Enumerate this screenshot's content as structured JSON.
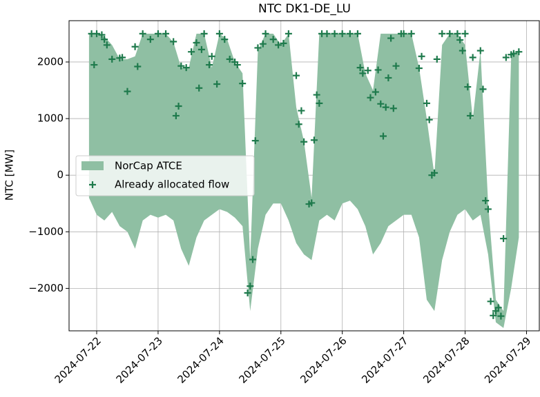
{
  "chart_data": {
    "type": "fill_between",
    "title": "NTC DK1-DE_LU",
    "y_label": "NTC [MW]",
    "xlim": [
      "2024-07-21T13:12",
      "2024-07-29T05:00"
    ],
    "xticks": [
      "2024-07-22",
      "2024-07-23",
      "2024-07-24",
      "2024-07-25",
      "2024-07-26",
      "2024-07-27",
      "2024-07-28",
      "2024-07-29"
    ],
    "ylim": [
      -2750,
      2730
    ],
    "yticks": [
      {
        "value": -2000,
        "label": "−2000"
      },
      {
        "value": -1000,
        "label": "−1000"
      },
      0,
      1000,
      2000
    ],
    "grid": true,
    "legend": "center left",
    "series": [
      {
        "name": "NorCap ATCE",
        "type": "area",
        "color": "#8fbfa3",
        "x": [
          "2024-07-21T21:00",
          "2024-07-22T00:00",
          "2024-07-22T03:00",
          "2024-07-22T06:00",
          "2024-07-22T09:00",
          "2024-07-22T12:00",
          "2024-07-22T15:00",
          "2024-07-22T18:00",
          "2024-07-22T21:00",
          "2024-07-23T00:00",
          "2024-07-23T03:00",
          "2024-07-23T06:00",
          "2024-07-23T09:00",
          "2024-07-23T12:00",
          "2024-07-23T15:00",
          "2024-07-23T18:00",
          "2024-07-23T21:00",
          "2024-07-24T00:00",
          "2024-07-24T03:00",
          "2024-07-24T06:00",
          "2024-07-24T09:00",
          "2024-07-24T12:00",
          "2024-07-24T15:00",
          "2024-07-24T18:00",
          "2024-07-24T21:00",
          "2024-07-25T00:00",
          "2024-07-25T03:00",
          "2024-07-25T06:00",
          "2024-07-25T09:00",
          "2024-07-25T12:00",
          "2024-07-25T15:00",
          "2024-07-25T18:00",
          "2024-07-25T21:00",
          "2024-07-26T00:00",
          "2024-07-26T03:00",
          "2024-07-26T06:00",
          "2024-07-26T09:00",
          "2024-07-26T12:00",
          "2024-07-26T15:00",
          "2024-07-26T18:00",
          "2024-07-26T21:00",
          "2024-07-27T00:00",
          "2024-07-27T03:00",
          "2024-07-27T06:00",
          "2024-07-27T09:00",
          "2024-07-27T12:00",
          "2024-07-27T15:00",
          "2024-07-27T18:00",
          "2024-07-27T21:00",
          "2024-07-28T00:00",
          "2024-07-28T03:00",
          "2024-07-28T06:00",
          "2024-07-28T09:00",
          "2024-07-28T12:00",
          "2024-07-28T15:00",
          "2024-07-28T18:00",
          "2024-07-28T21:00"
        ],
        "values": [
          2500,
          2500,
          2450,
          2300,
          2050,
          2050,
          2100,
          2500,
          2500,
          2500,
          2500,
          2350,
          1900,
          1900,
          2500,
          2500,
          1900,
          2500,
          2400,
          2000,
          1800,
          -1500,
          2200,
          2500,
          2500,
          2300,
          2500,
          1200,
          600,
          -400,
          2500,
          2500,
          2500,
          2500,
          2500,
          2500,
          1800,
          1500,
          2500,
          2500,
          2500,
          2500,
          2500,
          1900,
          1000,
          0,
          2300,
          2500,
          2500,
          2300,
          1000,
          2200,
          -500,
          -2200,
          -2400,
          2100,
          2200
        ],
        "lower": [
          -400,
          -700,
          -800,
          -650,
          -900,
          -1000,
          -1300,
          -800,
          -700,
          -750,
          -700,
          -800,
          -1300,
          -1600,
          -1100,
          -800,
          -700,
          -600,
          -650,
          -750,
          -900,
          -2400,
          -1300,
          -700,
          -500,
          -500,
          -800,
          -1200,
          -1400,
          -1500,
          -800,
          -700,
          -800,
          -500,
          -450,
          -600,
          -900,
          -1400,
          -1200,
          -900,
          -800,
          -700,
          -700,
          -1100,
          -2200,
          -2400,
          -1500,
          -1000,
          -700,
          -600,
          -800,
          -700,
          -1400,
          -2600,
          -2700,
          -2000,
          -1100
        ]
      },
      {
        "name": "Already allocated flow",
        "type": "scatter",
        "color": "#1e7a4c",
        "x": [
          "2024-07-21T22:00",
          "2024-07-21T23:00",
          "2024-07-22T00:00",
          "2024-07-22T02:00",
          "2024-07-22T03:00",
          "2024-07-22T04:00",
          "2024-07-22T06:00",
          "2024-07-22T09:00",
          "2024-07-22T10:00",
          "2024-07-22T12:00",
          "2024-07-22T15:00",
          "2024-07-22T16:00",
          "2024-07-22T18:00",
          "2024-07-22T21:00",
          "2024-07-23T00:00",
          "2024-07-23T03:00",
          "2024-07-23T06:00",
          "2024-07-23T07:00",
          "2024-07-23T08:00",
          "2024-07-23T09:00",
          "2024-07-23T11:00",
          "2024-07-23T13:00",
          "2024-07-23T15:00",
          "2024-07-23T16:00",
          "2024-07-23T17:00",
          "2024-07-23T18:00",
          "2024-07-23T20:00",
          "2024-07-23T21:00",
          "2024-07-23T23:00",
          "2024-07-24T00:00",
          "2024-07-24T02:00",
          "2024-07-24T04:00",
          "2024-07-24T06:00",
          "2024-07-24T07:00",
          "2024-07-24T09:00",
          "2024-07-24T11:00",
          "2024-07-24T12:00",
          "2024-07-24T13:00",
          "2024-07-24T14:00",
          "2024-07-24T15:00",
          "2024-07-24T17:00",
          "2024-07-24T18:00",
          "2024-07-24T21:00",
          "2024-07-24T23:00",
          "2024-07-25T01:00",
          "2024-07-25T03:00",
          "2024-07-25T06:00",
          "2024-07-25T07:00",
          "2024-07-25T08:00",
          "2024-07-25T09:00",
          "2024-07-25T11:00",
          "2024-07-25T12:00",
          "2024-07-25T13:00",
          "2024-07-25T14:00",
          "2024-07-25T15:00",
          "2024-07-25T16:00",
          "2024-07-25T18:00",
          "2024-07-25T21:00",
          "2024-07-26T00:00",
          "2024-07-26T03:00",
          "2024-07-26T06:00",
          "2024-07-26T07:00",
          "2024-07-26T08:00",
          "2024-07-26T10:00",
          "2024-07-26T11:00",
          "2024-07-26T13:00",
          "2024-07-26T14:00",
          "2024-07-26T15:00",
          "2024-07-26T16:00",
          "2024-07-26T17:00",
          "2024-07-26T18:00",
          "2024-07-26T19:00",
          "2024-07-26T20:00",
          "2024-07-26T21:00",
          "2024-07-26T23:00",
          "2024-07-27T00:00",
          "2024-07-27T03:00",
          "2024-07-27T06:00",
          "2024-07-27T07:00",
          "2024-07-27T09:00",
          "2024-07-27T10:00",
          "2024-07-27T11:00",
          "2024-07-27T12:00",
          "2024-07-27T13:00",
          "2024-07-27T15:00",
          "2024-07-27T18:00",
          "2024-07-27T21:00",
          "2024-07-27T22:00",
          "2024-07-27T23:00",
          "2024-07-28T00:00",
          "2024-07-28T01:00",
          "2024-07-28T02:00",
          "2024-07-28T03:00",
          "2024-07-28T06:00",
          "2024-07-28T07:00",
          "2024-07-28T08:00",
          "2024-07-28T09:00",
          "2024-07-28T10:00",
          "2024-07-28T11:00",
          "2024-07-28T12:00",
          "2024-07-28T13:00",
          "2024-07-28T14:00",
          "2024-07-28T15:00",
          "2024-07-28T16:00",
          "2024-07-28T18:00",
          "2024-07-28T19:00",
          "2024-07-28T21:00"
        ],
        "values": [
          2500,
          1950,
          2500,
          2480,
          2400,
          2300,
          2050,
          2070,
          2080,
          1480,
          2270,
          1920,
          2500,
          2400,
          2500,
          2500,
          2360,
          1050,
          1220,
          1930,
          1900,
          2180,
          2340,
          1540,
          2220,
          2500,
          1950,
          2100,
          1610,
          2500,
          2400,
          2050,
          2000,
          1950,
          1620,
          -2080,
          -1960,
          -1490,
          610,
          2250,
          2320,
          2500,
          2400,
          2300,
          2330,
          2500,
          1760,
          900,
          1140,
          590,
          -510,
          -490,
          620,
          1420,
          1270,
          2500,
          2500,
          2500,
          2500,
          2500,
          2500,
          1900,
          1800,
          1850,
          1370,
          1470,
          1860,
          1260,
          690,
          1200,
          1720,
          2420,
          1180,
          1930,
          2500,
          2500,
          2500,
          1890,
          2100,
          1270,
          980,
          0,
          40,
          2050,
          2500,
          2500,
          2500,
          2390,
          2200,
          2500,
          1560,
          1050,
          2080,
          2200,
          1520,
          -450,
          -600,
          -2230,
          -2480,
          -2400,
          -2340,
          -2490,
          -1120,
          2080,
          2130,
          2150,
          2180
        ]
      }
    ]
  }
}
